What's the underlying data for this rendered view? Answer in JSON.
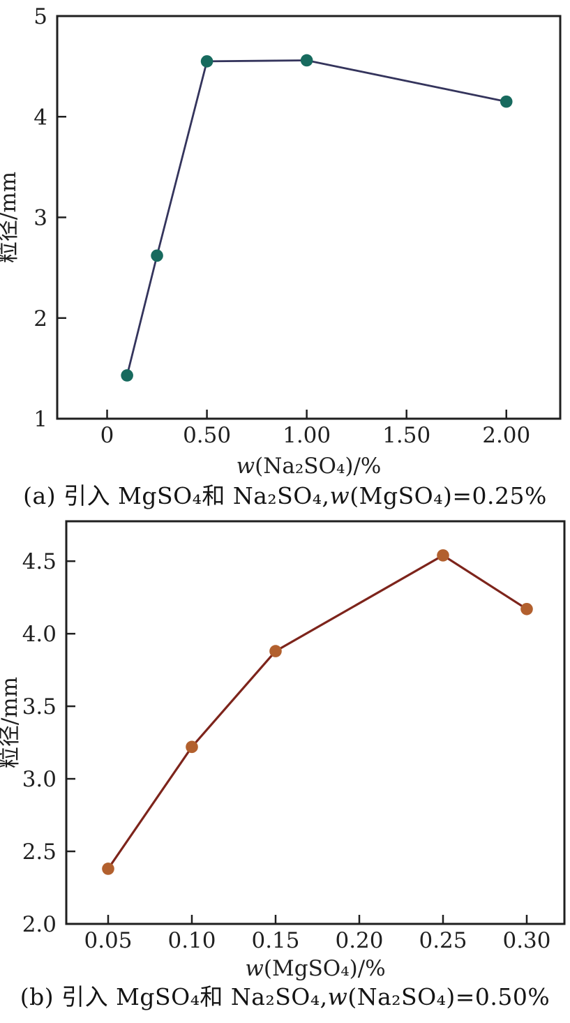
{
  "page": {
    "background": "#ffffff",
    "text_color": "#1f1f1f"
  },
  "chart_data": [
    {
      "id": "a",
      "type": "line",
      "x": [
        0.1,
        0.25,
        0.5,
        1.0,
        2.0
      ],
      "y": [
        1.43,
        2.62,
        4.55,
        4.56,
        4.15
      ],
      "xlabel": "w(Na₂SO₄)/%",
      "xlabel_var": "w",
      "xlabel_rest": "(Na₂SO₄)/%",
      "ylabel": "粒径/mm",
      "xlim": [
        -0.25,
        2.27
      ],
      "ylim": [
        1,
        5
      ],
      "xticks": [
        {
          "v": 0,
          "label": "0"
        },
        {
          "v": 0.5,
          "label": "0.50"
        },
        {
          "v": 1.0,
          "label": "1.00"
        },
        {
          "v": 1.5,
          "label": "1.50"
        },
        {
          "v": 2.0,
          "label": "2.00"
        }
      ],
      "yticks": [
        {
          "v": 1,
          "label": "1"
        },
        {
          "v": 2,
          "label": "2"
        },
        {
          "v": 3,
          "label": "3"
        },
        {
          "v": 4,
          "label": "4"
        },
        {
          "v": 5,
          "label": "5"
        }
      ],
      "grid": false,
      "legend": null,
      "line_color": "#34345c",
      "marker_color": "#176a5e",
      "axis_color": "#1f1f1f",
      "caption_pre": "(a) 引入 MgSO₄和 Na₂SO₄,",
      "caption_var": "w",
      "caption_rest": "(MgSO₄)=0.25%"
    },
    {
      "id": "b",
      "type": "line",
      "x": [
        0.05,
        0.1,
        0.15,
        0.25,
        0.3
      ],
      "y": [
        2.38,
        3.22,
        3.88,
        4.54,
        4.17
      ],
      "xlabel": "w(MgSO₄)/%",
      "xlabel_var": "w",
      "xlabel_rest": "(MgSO₄)/%",
      "ylabel": "粒径/mm",
      "xlim": [
        0.025,
        0.3225
      ],
      "ylim": [
        2.0,
        4.775
      ],
      "xticks": [
        {
          "v": 0.05,
          "label": "0.05"
        },
        {
          "v": 0.1,
          "label": "0.10"
        },
        {
          "v": 0.15,
          "label": "0.15"
        },
        {
          "v": 0.2,
          "label": "0.20"
        },
        {
          "v": 0.25,
          "label": "0.25"
        },
        {
          "v": 0.3,
          "label": "0.30"
        }
      ],
      "yticks": [
        {
          "v": 2.0,
          "label": "2.0"
        },
        {
          "v": 2.5,
          "label": "2.5"
        },
        {
          "v": 3.0,
          "label": "3.0"
        },
        {
          "v": 3.5,
          "label": "3.5"
        },
        {
          "v": 4.0,
          "label": "4.0"
        },
        {
          "v": 4.5,
          "label": "4.5"
        }
      ],
      "grid": false,
      "legend": null,
      "line_color": "#7d241b",
      "marker_color": "#b2602e",
      "axis_color": "#1f1f1f",
      "caption_pre": "(b) 引入 MgSO₄和 Na₂SO₄,",
      "caption_var": "w",
      "caption_rest": "(Na₂SO₄)=0.50%"
    }
  ]
}
